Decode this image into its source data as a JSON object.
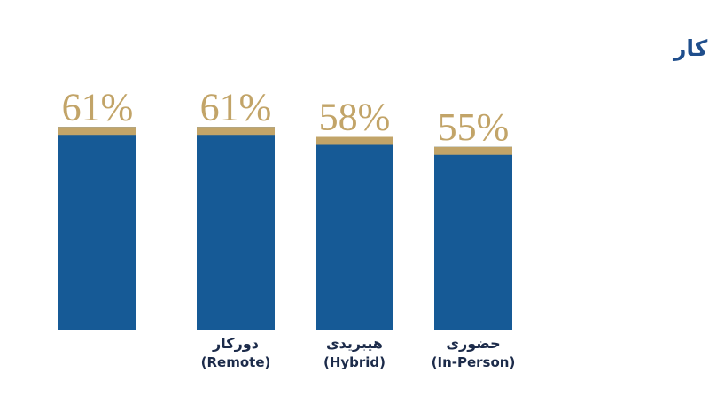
{
  "chart_data": {
    "type": "bar",
    "title": "نرخ ارتباط با محیط کار",
    "categories": [
      null,
      "دورکار",
      "هیبریدی",
      "حضوری"
    ],
    "category_subtitles": [
      null,
      "(Remote)",
      "(Hybrid)",
      "(In-Person)"
    ],
    "values": [
      61,
      61,
      58,
      55
    ],
    "value_labels": [
      "61%",
      "61%",
      "58%",
      "55%"
    ],
    "color": "#165a96",
    "cap_color": "#c2a468"
  }
}
